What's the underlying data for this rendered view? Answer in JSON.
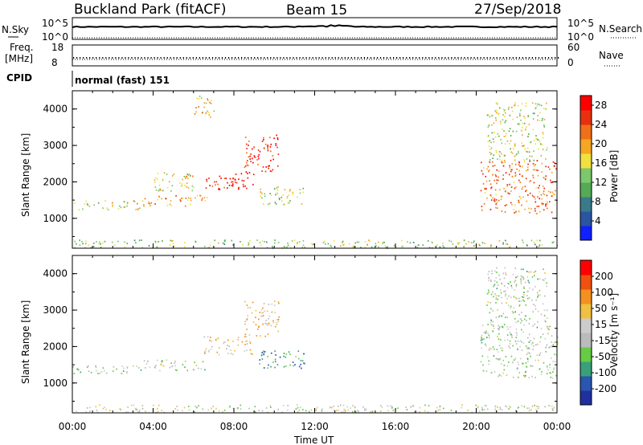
{
  "header": {
    "station": "Buckland Park (fitACF)",
    "beam": "Beam 15",
    "date": "27/Sep/2018"
  },
  "noise_panel": {
    "left_label": "N.Sky",
    "right_label": "N.Search",
    "left_ticks": [
      "10^5",
      "10^0"
    ],
    "right_ticks": [
      "10^5",
      "10^0"
    ]
  },
  "freq_panel": {
    "left_label_1": "Freq.",
    "left_label_2": "[MHz]",
    "right_label": "Nave",
    "left_ticks": [
      "18",
      "8"
    ],
    "right_ticks": [
      "60",
      "0"
    ]
  },
  "cpid_panel": {
    "left_label": "CPID",
    "mode": "normal (fast) 151"
  },
  "chart_data": [
    {
      "type": "heatmap",
      "name_param": "Power",
      "ylabel": "Slant Range [km]",
      "ylim": [
        180,
        4500
      ],
      "yticks": [
        "1000",
        "2000",
        "3000",
        "4000"
      ],
      "xlim_hours": [
        0,
        24
      ],
      "colorbar": {
        "label": "Power [dB]",
        "ticks": [
          "4",
          "8",
          "12",
          "16",
          "20",
          "24",
          "28"
        ],
        "range": [
          0,
          30
        ],
        "colors": [
          "#1020ff",
          "#2a55a0",
          "#3a7a8a",
          "#55aa55",
          "#7bc96a",
          "#f0e040",
          "#f5a623",
          "#f07018",
          "#e83010",
          "#ff0000"
        ]
      },
      "echo_regions": [
        {
          "t0": 0.0,
          "t1": 3.5,
          "r0": 1250,
          "r1": 1500,
          "level": 0.55
        },
        {
          "t0": 3.5,
          "t1": 6.8,
          "r0": 1350,
          "r1": 1650,
          "level": 0.65
        },
        {
          "t0": 4.0,
          "t1": 6.0,
          "r0": 1750,
          "r1": 2300,
          "level": 0.55
        },
        {
          "t0": 6.5,
          "t1": 9.0,
          "r0": 1800,
          "r1": 2300,
          "level": 0.92
        },
        {
          "t0": 8.5,
          "t1": 10.2,
          "r0": 2300,
          "r1": 3300,
          "level": 0.88
        },
        {
          "t0": 9.2,
          "t1": 11.5,
          "r0": 1400,
          "r1": 1900,
          "level": 0.5
        },
        {
          "t0": 6.0,
          "t1": 7.0,
          "r0": 3800,
          "r1": 4400,
          "level": 0.6
        },
        {
          "t0": 20.2,
          "t1": 24.0,
          "r0": 1150,
          "r1": 2600,
          "level": 0.75
        },
        {
          "t0": 20.5,
          "t1": 23.5,
          "r0": 2600,
          "r1": 4200,
          "level": 0.5
        },
        {
          "t0": 0.0,
          "t1": 24.0,
          "r0": 200,
          "r1": 420,
          "level": 0.45
        }
      ]
    },
    {
      "type": "heatmap",
      "name_param": "Velocity",
      "ylabel": "Slant Range [km]",
      "ylim": [
        180,
        4500
      ],
      "yticks": [
        "1000",
        "2000",
        "3000",
        "4000"
      ],
      "xlim_hours": [
        0,
        24
      ],
      "colorbar": {
        "label": "Velocity [m s⁻¹]",
        "ticks": [
          "200",
          "100",
          "50",
          "15",
          "-15",
          "-50",
          "-100",
          "-200"
        ],
        "range": [
          -250,
          250
        ],
        "colors": [
          "#2030a0",
          "#2a55b0",
          "#3aa07a",
          "#66cc44",
          "#bbbbbb",
          "#cccccc",
          "#f0c040",
          "#f59020",
          "#f05010",
          "#ff0000"
        ]
      },
      "echo_regions": [
        {
          "t0": 0.0,
          "t1": 3.5,
          "r0": 1250,
          "r1": 1500,
          "level": 0.45
        },
        {
          "t0": 3.5,
          "t1": 6.8,
          "r0": 1350,
          "r1": 1650,
          "level": 0.45
        },
        {
          "t0": 6.5,
          "t1": 9.0,
          "r0": 1800,
          "r1": 2300,
          "level": 0.62
        },
        {
          "t0": 8.5,
          "t1": 10.2,
          "r0": 2300,
          "r1": 3300,
          "level": 0.62
        },
        {
          "t0": 9.2,
          "t1": 11.5,
          "r0": 1400,
          "r1": 1900,
          "level": 0.25
        },
        {
          "t0": 20.2,
          "t1": 24.0,
          "r0": 1150,
          "r1": 2600,
          "level": 0.45
        },
        {
          "t0": 20.5,
          "t1": 23.5,
          "r0": 2600,
          "r1": 4200,
          "level": 0.45
        },
        {
          "t0": 0.0,
          "t1": 24.0,
          "r0": 200,
          "r1": 420,
          "level": 0.5
        }
      ]
    }
  ],
  "x_axis": {
    "ticks": [
      "00:00",
      "04:00",
      "08:00",
      "12:00",
      "16:00",
      "20:00",
      "00:00"
    ],
    "label": "Time UT"
  }
}
